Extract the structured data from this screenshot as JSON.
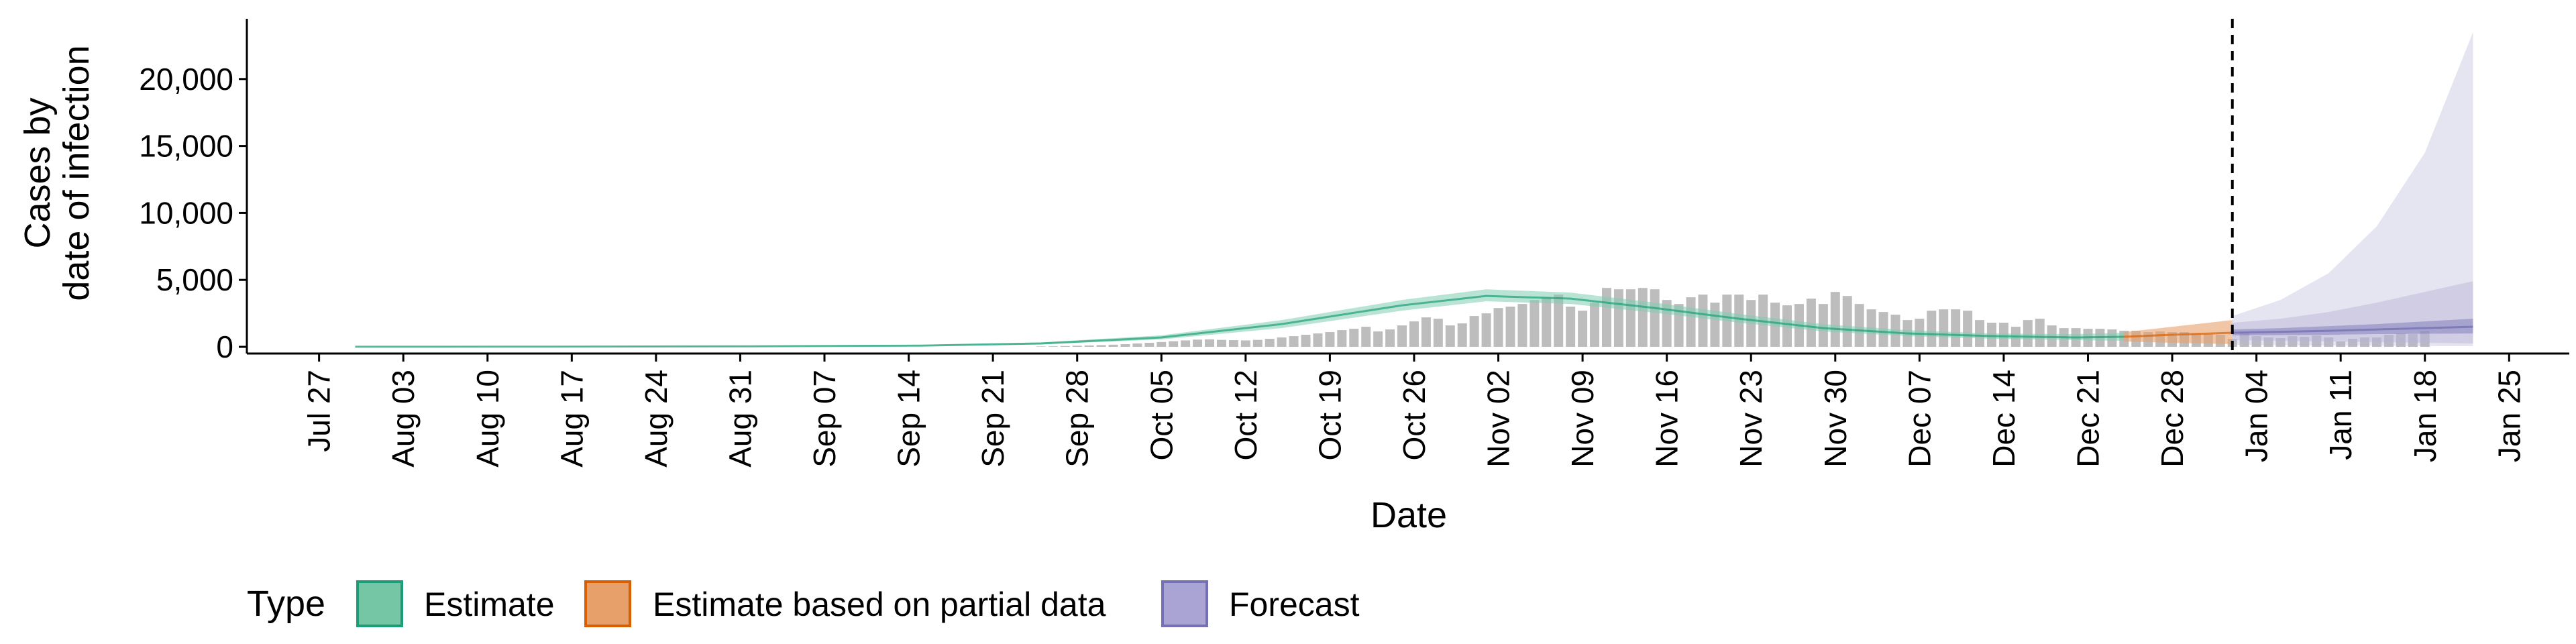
{
  "chart_data": {
    "type": "bar",
    "ylabel_lines": [
      "Cases by",
      "date of infection"
    ],
    "xlabel": "Date",
    "ylim": [
      -500,
      24500
    ],
    "y_ticks": [
      0,
      5000,
      10000,
      15000,
      20000
    ],
    "y_tick_labels": [
      "0",
      "5,000",
      "10,000",
      "15,000",
      "20,000"
    ],
    "x_range": [
      "2020-07-21",
      "2021-01-30"
    ],
    "x_ticks": [
      "2020-07-27",
      "2020-08-03",
      "2020-08-10",
      "2020-08-17",
      "2020-08-24",
      "2020-08-31",
      "2020-09-07",
      "2020-09-14",
      "2020-09-21",
      "2020-09-28",
      "2020-10-05",
      "2020-10-12",
      "2020-10-19",
      "2020-10-26",
      "2020-11-02",
      "2020-11-09",
      "2020-11-16",
      "2020-11-23",
      "2020-11-30",
      "2020-12-07",
      "2020-12-14",
      "2020-12-21",
      "2020-12-28",
      "2021-01-04",
      "2021-01-11",
      "2021-01-18",
      "2021-01-25"
    ],
    "x_tick_labels": [
      "Jul 27",
      "Aug 03",
      "Aug 10",
      "Aug 17",
      "Aug 24",
      "Aug 31",
      "Sep 07",
      "Sep 14",
      "Sep 21",
      "Sep 28",
      "Oct 05",
      "Oct 12",
      "Oct 19",
      "Oct 26",
      "Nov 02",
      "Nov 09",
      "Nov 16",
      "Nov 23",
      "Nov 30",
      "Dec 07",
      "Dec 14",
      "Dec 21",
      "Dec 28",
      "Jan 04",
      "Jan 11",
      "Jan 18",
      "Jan 25"
    ],
    "forecast_date": "2021-01-02",
    "reported_cases": {
      "start_date": "2020-09-25",
      "values": [
        30,
        40,
        60,
        80,
        100,
        130,
        160,
        200,
        250,
        300,
        360,
        420,
        480,
        540,
        560,
        520,
        500,
        480,
        520,
        600,
        700,
        800,
        900,
        1000,
        1100,
        1250,
        1350,
        1500,
        1150,
        1300,
        1600,
        1900,
        2200,
        2100,
        1600,
        1750,
        2300,
        2500,
        2900,
        3000,
        3200,
        3500,
        3700,
        3900,
        3000,
        2700,
        3300,
        4400,
        4300,
        4300,
        4400,
        4300,
        3500,
        3200,
        3700,
        3900,
        3300,
        3900,
        3900,
        3500,
        3900,
        3300,
        3100,
        3200,
        3600,
        3200,
        4100,
        3800,
        3200,
        2800,
        2600,
        2400,
        2000,
        2100,
        2700,
        2800,
        2800,
        2700,
        2000,
        1800,
        1800,
        1500,
        2000,
        2100,
        1600,
        1400,
        1400,
        1350,
        1350,
        1300,
        1200,
        1200,
        1100,
        1150,
        1100,
        1100,
        1000,
        950,
        900,
        600,
        1100,
        800,
        700,
        650,
        800,
        750,
        850,
        700,
        400,
        600,
        700,
        700,
        900,
        1000,
        950,
        1200
      ]
    },
    "series": [
      {
        "name": "Estimate",
        "color": "#1b9e77",
        "fill": "#7fcdb1",
        "x": [
          "2020-07-30",
          "2020-08-15",
          "2020-09-01",
          "2020-09-15",
          "2020-09-25",
          "2020-10-05",
          "2020-10-15",
          "2020-10-25",
          "2020-11-01",
          "2020-11-08",
          "2020-11-15",
          "2020-11-22",
          "2020-11-29",
          "2020-12-06",
          "2020-12-13",
          "2020-12-20",
          "2020-12-24"
        ],
        "median": [
          5,
          15,
          40,
          90,
          250,
          700,
          1700,
          3100,
          3800,
          3600,
          2900,
          2100,
          1400,
          1000,
          800,
          700,
          750
        ],
        "lower": [
          0,
          5,
          20,
          60,
          180,
          550,
          1400,
          2700,
          3400,
          3200,
          2550,
          1800,
          1150,
          800,
          600,
          500,
          450
        ],
        "upper": [
          15,
          30,
          70,
          140,
          330,
          860,
          2000,
          3500,
          4300,
          4050,
          3300,
          2450,
          1700,
          1250,
          1000,
          950,
          1050
        ]
      },
      {
        "name": "Estimate based on partial data",
        "color": "#d95f02",
        "fill": "#e8a06a",
        "x": [
          "2020-12-24",
          "2020-12-28",
          "2021-01-02"
        ],
        "median": [
          750,
          900,
          1050
        ],
        "lower": [
          400,
          300,
          200
        ],
        "upper": [
          1100,
          1500,
          2000
        ]
      },
      {
        "name": "Forecast",
        "color": "#7570b3",
        "fill": "#b5b2d8",
        "x": [
          "2021-01-02",
          "2021-01-06",
          "2021-01-10",
          "2021-01-14",
          "2021-01-18",
          "2021-01-22"
        ],
        "median": [
          1050,
          1120,
          1200,
          1300,
          1400,
          1500
        ],
        "inner_lower": [
          850,
          880,
          900,
          950,
          980,
          1000
        ],
        "inner_upper": [
          1300,
          1400,
          1550,
          1700,
          1900,
          2100
        ],
        "mid_lower": [
          500,
          450,
          400,
          350,
          300,
          250
        ],
        "mid_upper": [
          1800,
          2100,
          2600,
          3300,
          4100,
          4900
        ],
        "outer_lower": [
          150,
          120,
          100,
          80,
          60,
          50
        ],
        "outer_upper": [
          2300,
          3500,
          5500,
          9000,
          14500,
          23500
        ]
      }
    ],
    "legend": {
      "title": "Type",
      "position": "bottom",
      "items": [
        {
          "label": "Estimate",
          "fill": "#74c6a5",
          "stroke": "#1b9e77"
        },
        {
          "label": "Estimate based on partial data",
          "fill": "#e8a06a",
          "stroke": "#d95f02"
        },
        {
          "label": "Forecast",
          "fill": "#a9a4d3",
          "stroke": "#7570b3"
        }
      ]
    },
    "grid": false
  }
}
